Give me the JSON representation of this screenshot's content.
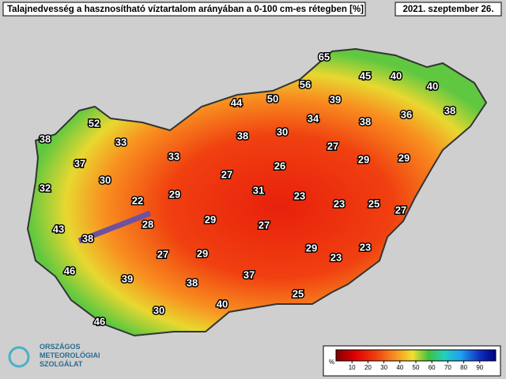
{
  "header": {
    "title": "Talajnedvesség a hasznosítható víztartalom arányában a 0-100 cm-es rétegben [%]",
    "date": "2021. szeptember 26."
  },
  "stations": [
    65,
    45,
    40,
    40,
    56,
    50,
    39,
    44,
    38,
    36,
    38,
    52,
    34,
    30,
    38,
    33,
    38,
    27,
    37,
    33,
    26,
    29,
    29,
    30,
    27,
    32,
    22,
    29,
    31,
    23,
    23,
    25,
    27,
    43,
    28,
    29,
    27,
    38,
    29,
    23,
    23,
    27,
    29,
    46,
    39,
    37,
    38,
    25,
    40,
    30,
    46
  ],
  "legend": {
    "unit": "%",
    "ticks": [
      10,
      20,
      30,
      40,
      50,
      60,
      70,
      80,
      90
    ]
  },
  "logo": {
    "line1": "ORSZÁGOS",
    "line2": "METEOROLÓGIAI",
    "line3": "SZOLGÁLAT"
  }
}
